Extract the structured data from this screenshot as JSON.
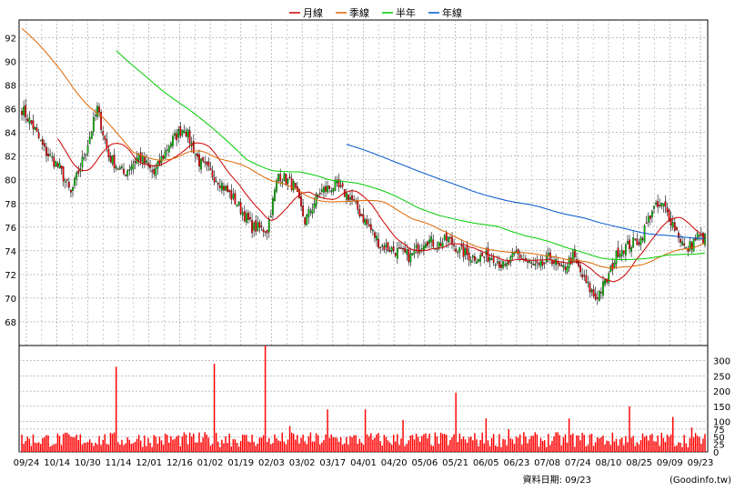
{
  "chart_data": {
    "type": "candlestick",
    "title": "",
    "legend": {
      "placement": "top-center",
      "entries": [
        {
          "name": "月線",
          "color": "#cc0000"
        },
        {
          "name": "季線",
          "color": "#dd6600"
        },
        {
          "name": "半年",
          "color": "#00cc00"
        },
        {
          "name": "年線",
          "color": "#0055cc"
        }
      ]
    },
    "price_axis": {
      "min": 66,
      "max": 93.5,
      "ticks": [
        68,
        70,
        72,
        74,
        76,
        78,
        80,
        82,
        84,
        86,
        88,
        90,
        92
      ]
    },
    "volume_axis": {
      "min": 0,
      "max": 350,
      "ticks": [
        0,
        25,
        50,
        75,
        100,
        150,
        200,
        250,
        300
      ]
    },
    "x_labels": [
      "09/24",
      "10/14",
      "10/30",
      "11/14",
      "12/01",
      "12/16",
      "01/02",
      "01/19",
      "02/03",
      "03/02",
      "03/17",
      "04/01",
      "04/20",
      "05/06",
      "05/21",
      "06/05",
      "06/23",
      "07/08",
      "07/24",
      "08/10",
      "08/25",
      "09/09",
      "09/23"
    ],
    "grid": true,
    "colors": {
      "up": "#00cc00",
      "down": "#ff0000",
      "volume": "#ff0000",
      "grid": "#999999"
    },
    "approx_close_waypoints": [
      [
        0,
        86.0
      ],
      [
        6,
        84.5
      ],
      [
        12,
        82.5
      ],
      [
        20,
        81.0
      ],
      [
        26,
        78.8
      ],
      [
        34,
        82.5
      ],
      [
        40,
        86.0
      ],
      [
        46,
        82.0
      ],
      [
        54,
        80.5
      ],
      [
        62,
        82.0
      ],
      [
        70,
        80.5
      ],
      [
        78,
        83.0
      ],
      [
        86,
        84.5
      ],
      [
        94,
        81.5
      ],
      [
        104,
        80.0
      ],
      [
        114,
        78.0
      ],
      [
        122,
        76.0
      ],
      [
        130,
        75.8
      ],
      [
        136,
        80.5
      ],
      [
        144,
        79.5
      ],
      [
        150,
        76.5
      ],
      [
        158,
        79.0
      ],
      [
        166,
        79.5
      ],
      [
        174,
        78.5
      ],
      [
        182,
        76.5
      ],
      [
        190,
        74.5
      ],
      [
        198,
        74.0
      ],
      [
        206,
        73.5
      ],
      [
        214,
        75.0
      ],
      [
        220,
        74.5
      ],
      [
        226,
        75.0
      ],
      [
        232,
        74.0
      ],
      [
        238,
        73.5
      ],
      [
        244,
        73.5
      ],
      [
        250,
        73.5
      ],
      [
        256,
        72.5
      ],
      [
        262,
        73.8
      ],
      [
        268,
        73.0
      ],
      [
        274,
        72.5
      ],
      [
        280,
        73.5
      ],
      [
        286,
        72.3
      ],
      [
        292,
        73.5
      ],
      [
        298,
        71.5
      ],
      [
        304,
        70.0
      ],
      [
        310,
        71.5
      ],
      [
        316,
        74.0
      ],
      [
        322,
        74.5
      ],
      [
        328,
        75.0
      ],
      [
        334,
        77.5
      ],
      [
        340,
        77.8
      ],
      [
        346,
        76.0
      ],
      [
        352,
        74.0
      ],
      [
        358,
        75.2
      ],
      [
        362,
        75.0
      ]
    ],
    "volume_spikes": [
      [
        50,
        280
      ],
      [
        102,
        290
      ],
      [
        110,
        60
      ],
      [
        129,
        350
      ],
      [
        142,
        85
      ],
      [
        162,
        140
      ],
      [
        182,
        140
      ],
      [
        202,
        105
      ],
      [
        230,
        195
      ],
      [
        246,
        110
      ],
      [
        258,
        75
      ],
      [
        290,
        110
      ],
      [
        322,
        150
      ],
      [
        345,
        115
      ],
      [
        355,
        80
      ]
    ],
    "volume_base": 45,
    "n_days": 363,
    "footer": {
      "label": "資料日期: 09/23",
      "source": "(Goodinfo.tw)"
    }
  }
}
